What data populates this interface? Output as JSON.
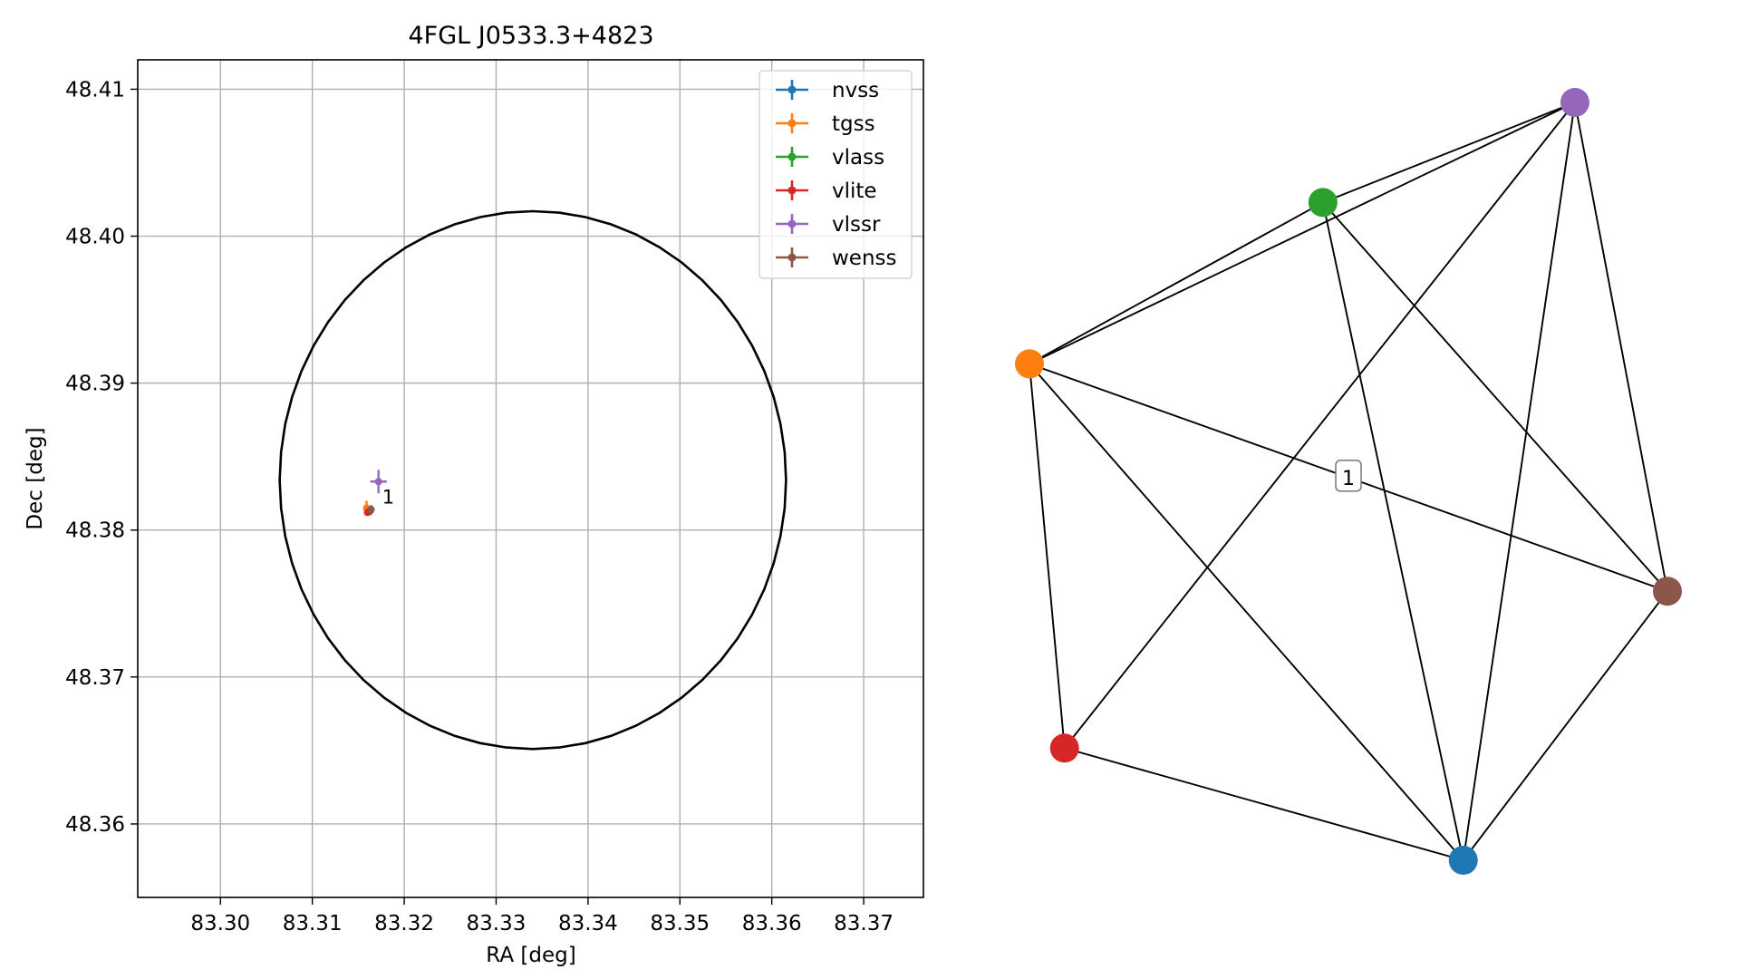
{
  "chart_data": [
    {
      "type": "scatter",
      "title": "4FGL J0533.3+4823",
      "xlabel": "RA [deg]",
      "ylabel": "Dec [deg]",
      "xlim": [
        83.291,
        83.3765
      ],
      "ylim": [
        48.355,
        48.412
      ],
      "xticks": [
        83.3,
        83.31,
        83.32,
        83.33,
        83.34,
        83.35,
        83.36,
        83.37
      ],
      "xtick_labels": [
        "83.30",
        "83.31",
        "83.32",
        "83.33",
        "83.34",
        "83.35",
        "83.36",
        "83.37"
      ],
      "yticks": [
        48.36,
        48.37,
        48.38,
        48.39,
        48.4,
        48.41
      ],
      "ytick_labels": [
        "48.36",
        "48.37",
        "48.38",
        "48.39",
        "48.40",
        "48.41"
      ],
      "grid": true,
      "legend_position": "top-right",
      "circle": {
        "center": [
          83.334,
          48.3834
        ],
        "radius_dec": 0.0183,
        "color": "#000000"
      },
      "series": [
        {
          "name": "nvss",
          "color": "#1f77b4",
          "x": [
            83.3163
          ],
          "y": [
            48.3813
          ],
          "xerr": [
            0.0003
          ],
          "yerr": [
            0.0003
          ]
        },
        {
          "name": "tgss",
          "color": "#ff7f0e",
          "x": [
            83.3159
          ],
          "y": [
            48.3815
          ],
          "xerr": [
            0.0002
          ],
          "yerr": [
            0.0005
          ]
        },
        {
          "name": "vlass",
          "color": "#2ca02c",
          "x": [
            83.3162
          ],
          "y": [
            48.3813
          ],
          "xerr": [
            0.0001
          ],
          "yerr": [
            0.0001
          ]
        },
        {
          "name": "vlite",
          "color": "#d62728",
          "x": [
            83.316
          ],
          "y": [
            48.3812
          ],
          "xerr": [
            0.0002
          ],
          "yerr": [
            0.0002
          ]
        },
        {
          "name": "vlssr",
          "color": "#9467bd",
          "x": [
            83.3172
          ],
          "y": [
            48.3833
          ],
          "xerr": [
            0.0009
          ],
          "yerr": [
            0.0008
          ]
        },
        {
          "name": "wenss",
          "color": "#8c564b",
          "x": [
            83.3164
          ],
          "y": [
            48.3814
          ],
          "xerr": [
            0.0003
          ],
          "yerr": [
            0.0003
          ]
        }
      ],
      "annotations": [
        {
          "text": "1",
          "x": 83.3176,
          "y": 48.3828
        }
      ]
    },
    {
      "type": "network",
      "edge_label": "1",
      "nodes": [
        {
          "id": "nvss",
          "color": "#1f77b4",
          "x": 0.68,
          "y": 0.0
        },
        {
          "id": "tgss",
          "color": "#ff7f0e",
          "x": 0.0,
          "y": 0.655
        },
        {
          "id": "vlass",
          "color": "#2ca02c",
          "x": 0.46,
          "y": 0.868
        },
        {
          "id": "vlite",
          "color": "#d62728",
          "x": 0.055,
          "y": 0.148
        },
        {
          "id": "vlssr",
          "color": "#9467bd",
          "x": 0.855,
          "y": 1.0
        },
        {
          "id": "wenss",
          "color": "#8c564b",
          "x": 1.0,
          "y": 0.355
        }
      ],
      "edges": [
        [
          "tgss",
          "vlass"
        ],
        [
          "tgss",
          "vlssr"
        ],
        [
          "tgss",
          "vlite"
        ],
        [
          "tgss",
          "nvss"
        ],
        [
          "tgss",
          "wenss"
        ],
        [
          "vlass",
          "vlssr"
        ],
        [
          "vlass",
          "nvss"
        ],
        [
          "vlass",
          "wenss"
        ],
        [
          "vlssr",
          "vlite"
        ],
        [
          "vlssr",
          "nvss"
        ],
        [
          "vlssr",
          "wenss"
        ],
        [
          "vlite",
          "nvss"
        ],
        [
          "nvss",
          "wenss"
        ]
      ]
    }
  ]
}
